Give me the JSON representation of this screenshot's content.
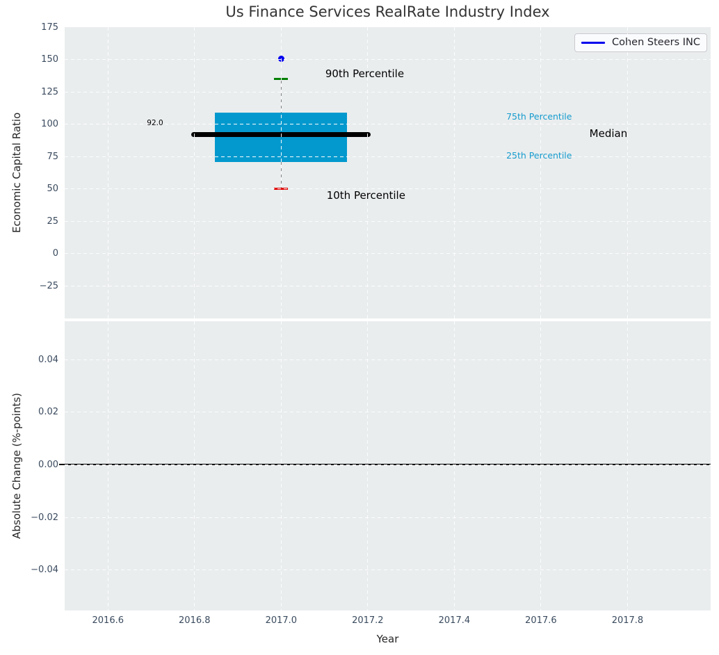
{
  "title": "Us Finance Services RealRate Industry Index",
  "legend": {
    "label": "Cohen Steers INC",
    "line_color": "#0000ee"
  },
  "colors": {
    "axes_background": "#eaedee",
    "gridline": "#fbfcfd",
    "box_fill": "#0399ce",
    "median_line": "#000000",
    "whisker": "#848484",
    "p90_cap": "#008000",
    "p10_cap": "#e00000",
    "company_marker": "#0000ee",
    "percentile_text": "#149bce",
    "tick_text": "#3a4a5e",
    "zero_line": "#000000"
  },
  "chart_data": [
    {
      "type": "boxplot",
      "title": "Us Finance Services RealRate Industry Index",
      "ylabel": "Economic Capital Ratio",
      "xlim": [
        2016.5,
        2017.992
      ],
      "ylim": [
        -50,
        175
      ],
      "grid": "dashed-white",
      "show_x_labels": false,
      "xticks": [
        [
          2016.6,
          "2016.6"
        ],
        [
          2016.8,
          "2016.8"
        ],
        [
          2017.0,
          "2017.0"
        ],
        [
          2017.2,
          "2017.2"
        ],
        [
          2017.4,
          "2017.4"
        ],
        [
          2017.6,
          "2017.6"
        ],
        [
          2017.8,
          "2017.8"
        ]
      ],
      "yticks": [
        [
          175,
          "175"
        ],
        [
          150,
          "150"
        ],
        [
          125,
          "125"
        ],
        [
          100,
          "100"
        ],
        [
          75,
          "75"
        ],
        [
          50,
          "50"
        ],
        [
          25,
          "25"
        ],
        [
          0,
          "0"
        ],
        [
          -25,
          "−25"
        ]
      ],
      "legend_entries": [
        {
          "label": "Cohen Steers INC",
          "color": "#0000ee",
          "position": "upper right"
        }
      ],
      "box": {
        "x": 2017.0,
        "median": 92.0,
        "median_label": "92.0",
        "q25": 71,
        "q75": 109,
        "p10": 50,
        "p90": 135,
        "company_value": 150.5,
        "box_half_width": 0.1525,
        "median_half_width": 0.207,
        "cap_half_width": 0.016
      },
      "annotations": [
        {
          "text": "90th Percentile",
          "x": 2017.102,
          "y": 138,
          "color": "#000000",
          "style": "primary"
        },
        {
          "text": "10th Percentile",
          "x": 2017.105,
          "y": 44,
          "color": "#000000",
          "style": "primary"
        },
        {
          "text": "75th Percentile",
          "x": 2017.52,
          "y": 105,
          "color": "#149bce",
          "style": "secondary"
        },
        {
          "text": "25th Percentile",
          "x": 2017.52,
          "y": 75,
          "color": "#149bce",
          "style": "secondary"
        },
        {
          "text": "Median",
          "x": 2017.712,
          "y": 91.5,
          "color": "#000000",
          "style": "primary"
        },
        {
          "text": "92.0",
          "x": 2016.69,
          "y": 100,
          "color": "#000000",
          "style": "value"
        }
      ]
    },
    {
      "type": "line",
      "xlabel": "Year",
      "ylabel": "Absolute Change (%-points)",
      "xlim": [
        2016.5,
        2017.992
      ],
      "ylim": [
        -0.0554,
        0.0546
      ],
      "grid": "dashed-white",
      "show_x_labels": true,
      "xticks": [
        [
          2016.6,
          "2016.6"
        ],
        [
          2016.8,
          "2016.8"
        ],
        [
          2017.0,
          "2017.0"
        ],
        [
          2017.2,
          "2017.2"
        ],
        [
          2017.4,
          "2017.4"
        ],
        [
          2017.6,
          "2017.6"
        ],
        [
          2017.8,
          "2017.8"
        ]
      ],
      "yticks": [
        [
          0.04,
          "0.04"
        ],
        [
          0.02,
          "0.02"
        ],
        [
          0.0,
          "0.00"
        ],
        [
          -0.02,
          "−0.02"
        ],
        [
          -0.04,
          "−0.04"
        ]
      ],
      "zero_line": 0.0,
      "series": []
    }
  ]
}
